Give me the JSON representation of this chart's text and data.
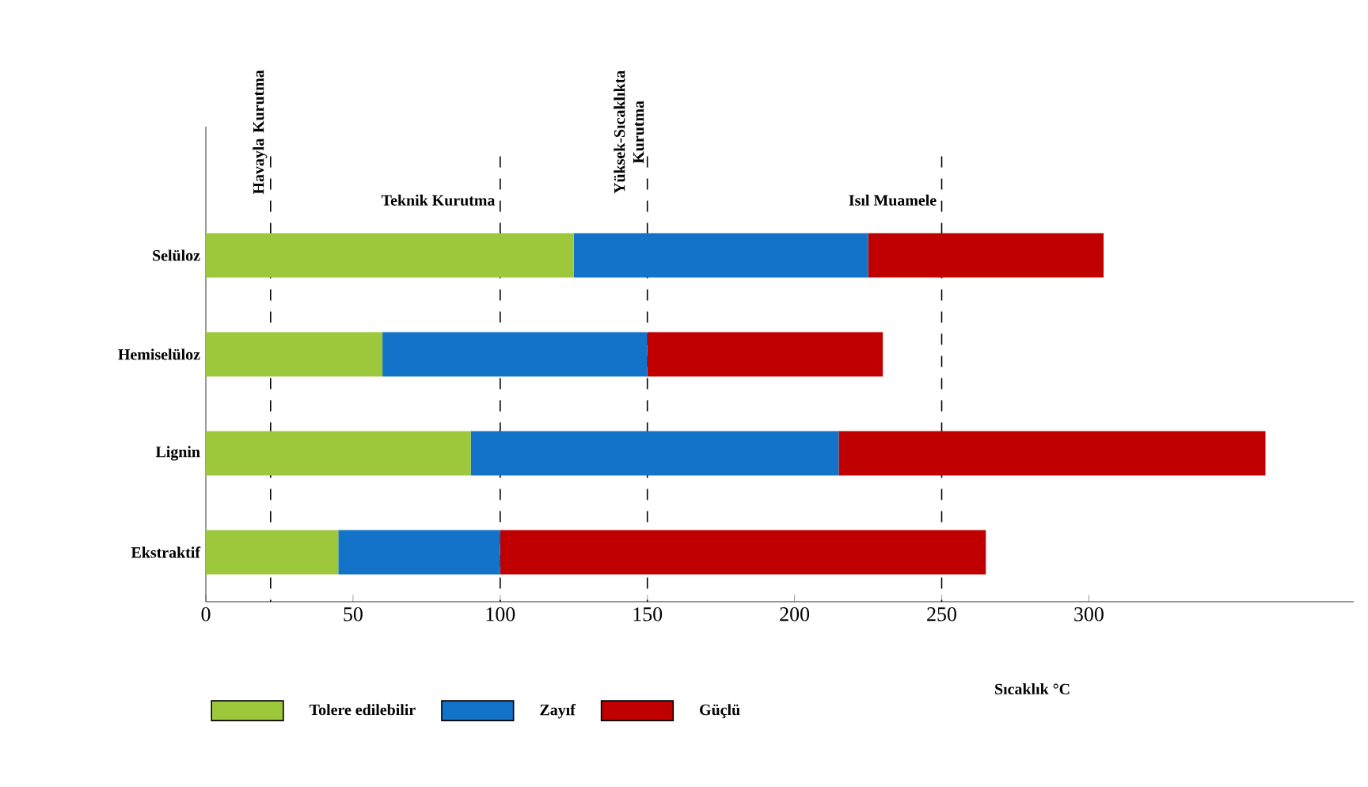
{
  "chart_data": {
    "type": "bar",
    "orientation": "horizontal",
    "stacked": true,
    "categories": [
      "Selüloz",
      "Hemiselüloz",
      "Lignin",
      "Ekstraktif"
    ],
    "series": [
      {
        "name": "Tolere edilebilir",
        "color": "#9dc83c",
        "values": [
          125,
          60,
          90,
          45
        ]
      },
      {
        "name": "Zayıf",
        "color": "#1273c8",
        "values": [
          100,
          90,
          125,
          55
        ]
      },
      {
        "name": "Güçlü",
        "color": "#c00000",
        "values": [
          80,
          80,
          145,
          165
        ]
      }
    ],
    "xlabel": "Sıcaklık °C",
    "xlim": [
      0,
      390
    ],
    "xticks": [
      0,
      50,
      100,
      150,
      200,
      250,
      300
    ],
    "ref_lines": [
      {
        "axis": "x",
        "value": 22,
        "label": "Havayla Kurutma",
        "line_style": "dashed"
      },
      {
        "axis": "x",
        "value": 100,
        "label": "Teknik Kurutma",
        "line_style": "dashed"
      },
      {
        "axis": "x",
        "value": 150,
        "label": "Yüksek-Sıcaklıkta Kurutma",
        "line_style": "dashed"
      },
      {
        "axis": "x",
        "value": 250,
        "label": "Isıl Muamele",
        "line_style": "dashed"
      }
    ],
    "legend": "bottom",
    "grid": false
  }
}
